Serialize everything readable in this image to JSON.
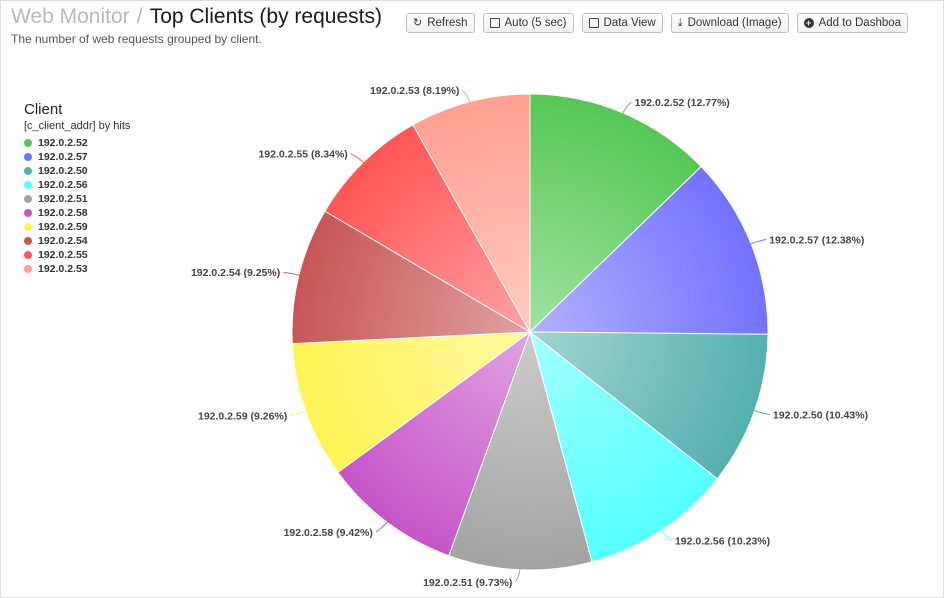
{
  "header": {
    "crumb": "Web Monitor",
    "separator": "/",
    "title": "Top Clients (by requests)",
    "subtitle": "The number of web requests grouped by client."
  },
  "toolbar": {
    "refresh": "Refresh",
    "auto": "Auto (5 sec)",
    "data_view": "Data View",
    "download": "Download (Image)",
    "add_dashboard": "Add to Dashboa"
  },
  "legend": {
    "title": "Client",
    "subtitle": "[c_client_addr] by hits",
    "position": "left"
  },
  "chart_data": {
    "type": "pie",
    "title": "",
    "categories": [
      "192.0.2.52",
      "192.0.2.57",
      "192.0.2.50",
      "192.0.2.56",
      "192.0.2.51",
      "192.0.2.58",
      "192.0.2.59",
      "192.0.2.54",
      "192.0.2.55",
      "192.0.2.53"
    ],
    "values": [
      12.77,
      12.38,
      10.43,
      10.23,
      9.73,
      9.42,
      9.26,
      9.25,
      8.34,
      8.19
    ],
    "labels": [
      "192.0.2.52 (12.77%)",
      "192.0.2.57 (12.38%)",
      "192.0.2.50 (10.43%)",
      "192.0.2.56 (10.23%)",
      "192.0.2.51 (9.73%)",
      "192.0.2.58 (9.42%)",
      "192.0.2.59 (9.26%)",
      "192.0.2.54 (9.25%)",
      "192.0.2.55 (8.34%)",
      "192.0.2.53 (8.19%)"
    ],
    "colors": [
      "#55c855",
      "#7272ff",
      "#55b0ae",
      "#55ffff",
      "#a3a3a3",
      "#c655c8",
      "#fff455",
      "#c85555",
      "#ff5555",
      "#ffa08f"
    ]
  }
}
